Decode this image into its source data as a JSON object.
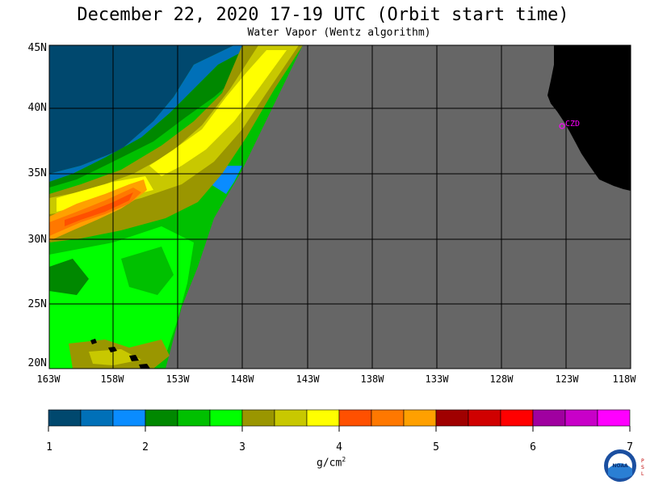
{
  "title": "December 22, 2020  17-19 UTC  (Orbit start time)",
  "subtitle": "Water Vapor (Wentz algorithm)",
  "lat_labels": [
    "45N",
    "40N",
    "35N",
    "30N",
    "25N",
    "20N"
  ],
  "lon_labels": [
    "163W",
    "158W",
    "153W",
    "148W",
    "143W",
    "138W",
    "133W",
    "128W",
    "123W",
    "118W"
  ],
  "station_label": "CZD",
  "colorbar": {
    "ticks": [
      "1",
      "2",
      "3",
      "4",
      "5",
      "6",
      "7"
    ],
    "unit": "g/cm",
    "unit_sup": "2",
    "colors": [
      "#00486e",
      "#0070b8",
      "#0a8cff",
      "#008800",
      "#00c000",
      "#00ff00",
      "#9a9600",
      "#c8c800",
      "#ffff00",
      "#ff5000",
      "#ff7800",
      "#ffa000",
      "#a00000",
      "#d00000",
      "#ff0000",
      "#a000a0",
      "#c800c8",
      "#ff00ff"
    ]
  },
  "colors": {
    "no_data": "#666666",
    "land": "#000000",
    "grid": "#000000",
    "station": "#ff00ff"
  },
  "logo": {
    "text": "NOAA",
    "side_letters": "PSL"
  }
}
